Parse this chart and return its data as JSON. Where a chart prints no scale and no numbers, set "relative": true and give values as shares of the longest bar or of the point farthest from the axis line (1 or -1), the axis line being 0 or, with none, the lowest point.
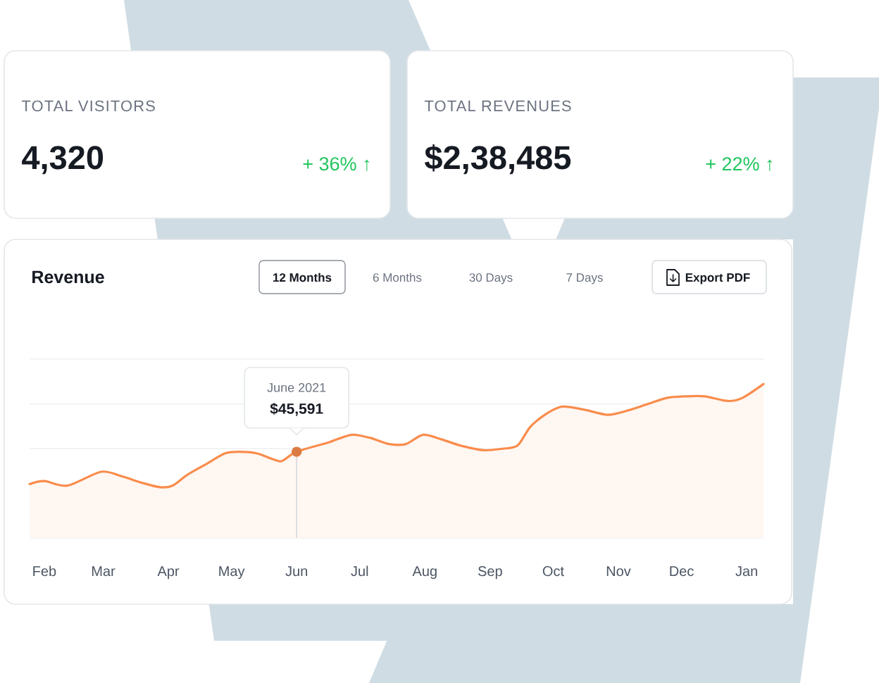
{
  "chart_data": [
    {
      "type": "other",
      "title": "TOTAL VISITORS",
      "annotations": [
        "4,320",
        "+ 36% ↑"
      ]
    },
    {
      "type": "other",
      "title": "TOTAL REVENUES",
      "annotations": [
        "$2,38,485",
        "+ 22% ↑"
      ]
    },
    {
      "type": "area",
      "title": "Revenue",
      "relative": true,
      "color": "#f98c4c",
      "x": [
        "2021-01-25",
        "2021-02-01",
        "2021-02-12",
        "2021-02-28",
        "2021-03-10",
        "2021-03-19",
        "2021-03-28",
        "2021-04-03",
        "2021-04-10",
        "2021-04-19",
        "2021-04-28",
        "2021-05-05",
        "2021-05-13",
        "2021-05-21",
        "2021-05-25",
        "2021-06-01",
        "2021-06-16",
        "2021-06-27",
        "2021-07-06",
        "2021-07-15",
        "2021-07-23",
        "2021-07-31",
        "2021-08-09",
        "2021-08-18",
        "2021-08-29",
        "2021-09-07",
        "2021-09-14",
        "2021-09-20",
        "2021-09-27",
        "2021-10-04",
        "2021-10-09",
        "2021-10-17",
        "2021-10-27",
        "2021-11-06",
        "2021-11-15",
        "2021-11-24",
        "2021-12-03",
        "2021-12-12",
        "2021-12-23",
        "2021-12-30",
        "2022-01-09"
      ],
      "values": [
        0.35,
        0.37,
        0.34,
        0.43,
        0.4,
        0.36,
        0.33,
        0.34,
        0.41,
        0.48,
        0.55,
        0.56,
        0.55,
        0.51,
        0.5,
        0.56,
        0.62,
        0.67,
        0.65,
        0.61,
        0.61,
        0.67,
        0.64,
        0.6,
        0.57,
        0.58,
        0.6,
        0.72,
        0.8,
        0.85,
        0.85,
        0.83,
        0.8,
        0.83,
        0.87,
        0.91,
        0.92,
        0.92,
        0.89,
        0.91,
        1.0
      ],
      "xlim": [
        "2021-01-25",
        "2022-01-09"
      ],
      "xticks": [
        {
          "value": "2021-02-01",
          "label": "Feb"
        },
        {
          "value": "2021-03-01",
          "label": "Mar"
        },
        {
          "value": "2021-04-01",
          "label": "Apr"
        },
        {
          "value": "2021-05-01",
          "label": "May"
        },
        {
          "value": "2021-06-01",
          "label": "Jun"
        },
        {
          "value": "2021-07-01",
          "label": "Jul"
        },
        {
          "value": "2021-08-01",
          "label": "Aug"
        },
        {
          "value": "2021-09-01",
          "label": "Sep"
        },
        {
          "value": "2021-10-01",
          "label": "Oct"
        },
        {
          "value": "2021-11-01",
          "label": "Nov"
        },
        {
          "value": "2021-12-01",
          "label": "Dec"
        },
        {
          "value": "2022-01-01",
          "label": "Jan"
        }
      ],
      "grid": "y",
      "ref_lines": [
        {
          "axis": "x",
          "value": "2021-06-01",
          "color": "#d5d9de"
        }
      ],
      "annotations": [
        "12 Months",
        "6 Months",
        "30 Days",
        "7 Days",
        "Export PDF",
        "June 2021",
        {
          "text": "$45,591",
          "x": "2021-06-01",
          "y": 0.56
        }
      ]
    }
  ]
}
